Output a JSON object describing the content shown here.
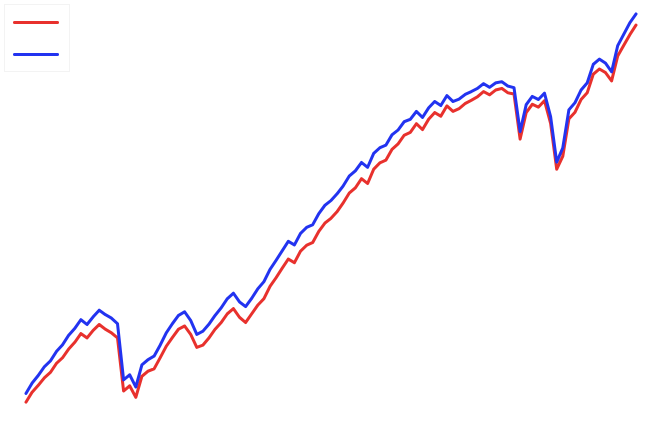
{
  "chart_data": {
    "type": "line",
    "title": "",
    "xlabel": "",
    "ylabel": "",
    "grid": false,
    "legend_position": "top-left",
    "x": [
      0,
      4,
      8,
      12,
      16,
      20,
      24,
      28,
      32,
      36,
      40,
      44,
      48,
      52,
      56,
      60,
      64,
      68,
      72,
      76,
      80,
      84,
      88,
      92,
      96,
      100,
      104,
      108,
      112,
      116,
      120,
      124,
      128,
      132,
      136,
      140,
      144,
      148,
      152,
      156,
      160,
      164,
      168,
      172,
      176,
      180,
      184,
      188,
      192,
      196,
      200,
      204,
      208,
      212,
      216,
      220,
      224,
      228,
      232,
      236,
      240,
      244,
      248,
      252,
      256,
      260,
      264,
      268,
      272,
      276,
      280,
      284,
      288,
      292,
      296,
      300,
      304,
      308,
      312,
      316,
      320,
      324,
      328,
      332,
      336,
      340,
      344,
      348,
      352,
      356,
      360,
      364,
      368,
      372,
      376,
      380,
      384,
      388,
      392,
      396,
      400
    ],
    "ylim": [
      0,
      100
    ],
    "series": [
      {
        "name": "",
        "color": "#e8312d",
        "values": [
          2.0,
          4.5,
          6.2,
          8.1,
          9.5,
          11.8,
          13.2,
          15.4,
          17.1,
          19.3,
          18.2,
          20.1,
          21.6,
          20.4,
          19.5,
          18.2,
          4.8,
          6.1,
          3.2,
          8.5,
          9.8,
          10.4,
          13.2,
          16.1,
          18.3,
          20.4,
          21.2,
          19.1,
          15.8,
          16.4,
          18.2,
          20.4,
          22.1,
          24.3,
          25.6,
          23.4,
          22.1,
          24.3,
          26.5,
          28.1,
          31.2,
          33.4,
          35.8,
          38.1,
          37.2,
          40.1,
          41.6,
          42.3,
          45.1,
          47.2,
          48.4,
          50.1,
          52.3,
          54.8,
          56.1,
          58.4,
          57.2,
          60.8,
          62.4,
          63.1,
          65.8,
          67.2,
          69.4,
          70.1,
          72.3,
          70.8,
          73.4,
          75.1,
          74.2,
          76.8,
          75.4,
          76.1,
          77.4,
          78.2,
          79.1,
          80.4,
          79.6,
          80.8,
          81.2,
          80.1,
          79.8,
          68.4,
          75.1,
          77.2,
          76.5,
          78.1,
          72.4,
          60.8,
          64.1,
          73.5,
          75.2,
          78.4,
          80.1,
          84.8,
          86.1,
          85.2,
          83.1,
          89.4,
          92.1,
          94.8,
          97.2
        ]
      },
      {
        "name": "",
        "color": "#2233f0",
        "values": [
          4.2,
          6.8,
          8.7,
          10.9,
          12.4,
          14.8,
          16.5,
          18.9,
          20.6,
          22.8,
          21.6,
          23.5,
          25.2,
          24.1,
          23.2,
          21.8,
          7.6,
          8.9,
          5.8,
          11.4,
          12.7,
          13.6,
          16.4,
          19.5,
          21.8,
          23.9,
          24.8,
          22.6,
          19.1,
          19.9,
          21.7,
          23.9,
          25.8,
          28.1,
          29.5,
          27.3,
          26.1,
          28.2,
          30.6,
          32.4,
          35.5,
          37.8,
          40.2,
          42.6,
          41.7,
          44.6,
          46.1,
          46.8,
          49.6,
          51.7,
          52.9,
          54.6,
          56.6,
          59.1,
          60.4,
          62.5,
          61.3,
          64.8,
          66.2,
          66.9,
          69.5,
          70.7,
          72.8,
          73.4,
          75.4,
          73.9,
          76.3,
          77.9,
          76.9,
          79.4,
          77.9,
          78.5,
          79.7,
          80.4,
          81.2,
          82.4,
          81.5,
          82.6,
          82.9,
          81.8,
          81.4,
          70.3,
          77.1,
          79.2,
          78.4,
          80.0,
          74.1,
          62.6,
          66.2,
          75.8,
          77.6,
          80.8,
          82.6,
          87.3,
          88.6,
          87.6,
          85.4,
          92.0,
          94.9,
          97.8,
          100.0
        ]
      }
    ]
  }
}
